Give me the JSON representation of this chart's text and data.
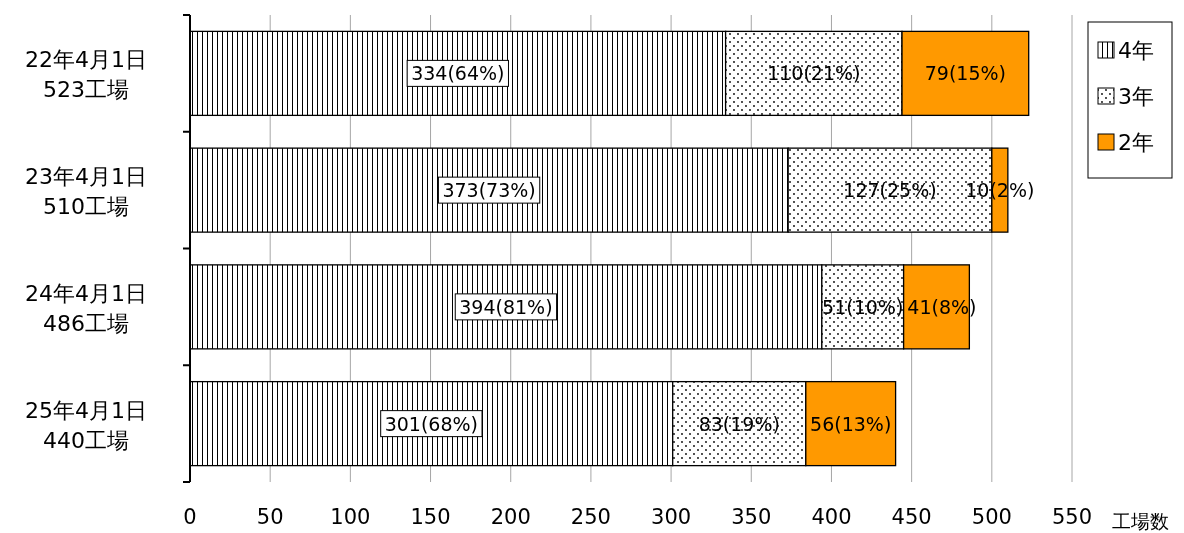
{
  "chart_data": {
    "type": "bar",
    "orientation": "horizontal",
    "stacked": true,
    "categories": [
      "22年4月1日 523工場",
      "23年4月1日 510工場",
      "24年4月1日 486工場",
      "25年4月1日 440工場"
    ],
    "series": [
      {
        "name": "4年",
        "color": "#000000",
        "values": [
          334,
          373,
          394,
          301
        ],
        "value_labels": [
          "334(64%)",
          "373(73%)",
          "394(81%)",
          "301(68%)"
        ]
      },
      {
        "name": "3年",
        "color": "#000000",
        "values": [
          110,
          127,
          51,
          83
        ],
        "value_labels": [
          "110(21%)",
          "127(25%)",
          "51(10%)",
          "83(19%)"
        ]
      },
      {
        "name": "2年",
        "color": "#ff9900",
        "values": [
          79,
          10,
          41,
          56
        ],
        "value_labels": [
          "79(15%)",
          "10(2%)",
          "41(8%)",
          "56(13%)"
        ]
      }
    ],
    "xlim": [
      0,
      550
    ],
    "xticks": [
      0,
      50,
      100,
      150,
      200,
      250,
      300,
      350,
      400,
      450,
      500,
      550
    ],
    "xlabel": "工場数",
    "grid": "x",
    "legend": "top right"
  }
}
